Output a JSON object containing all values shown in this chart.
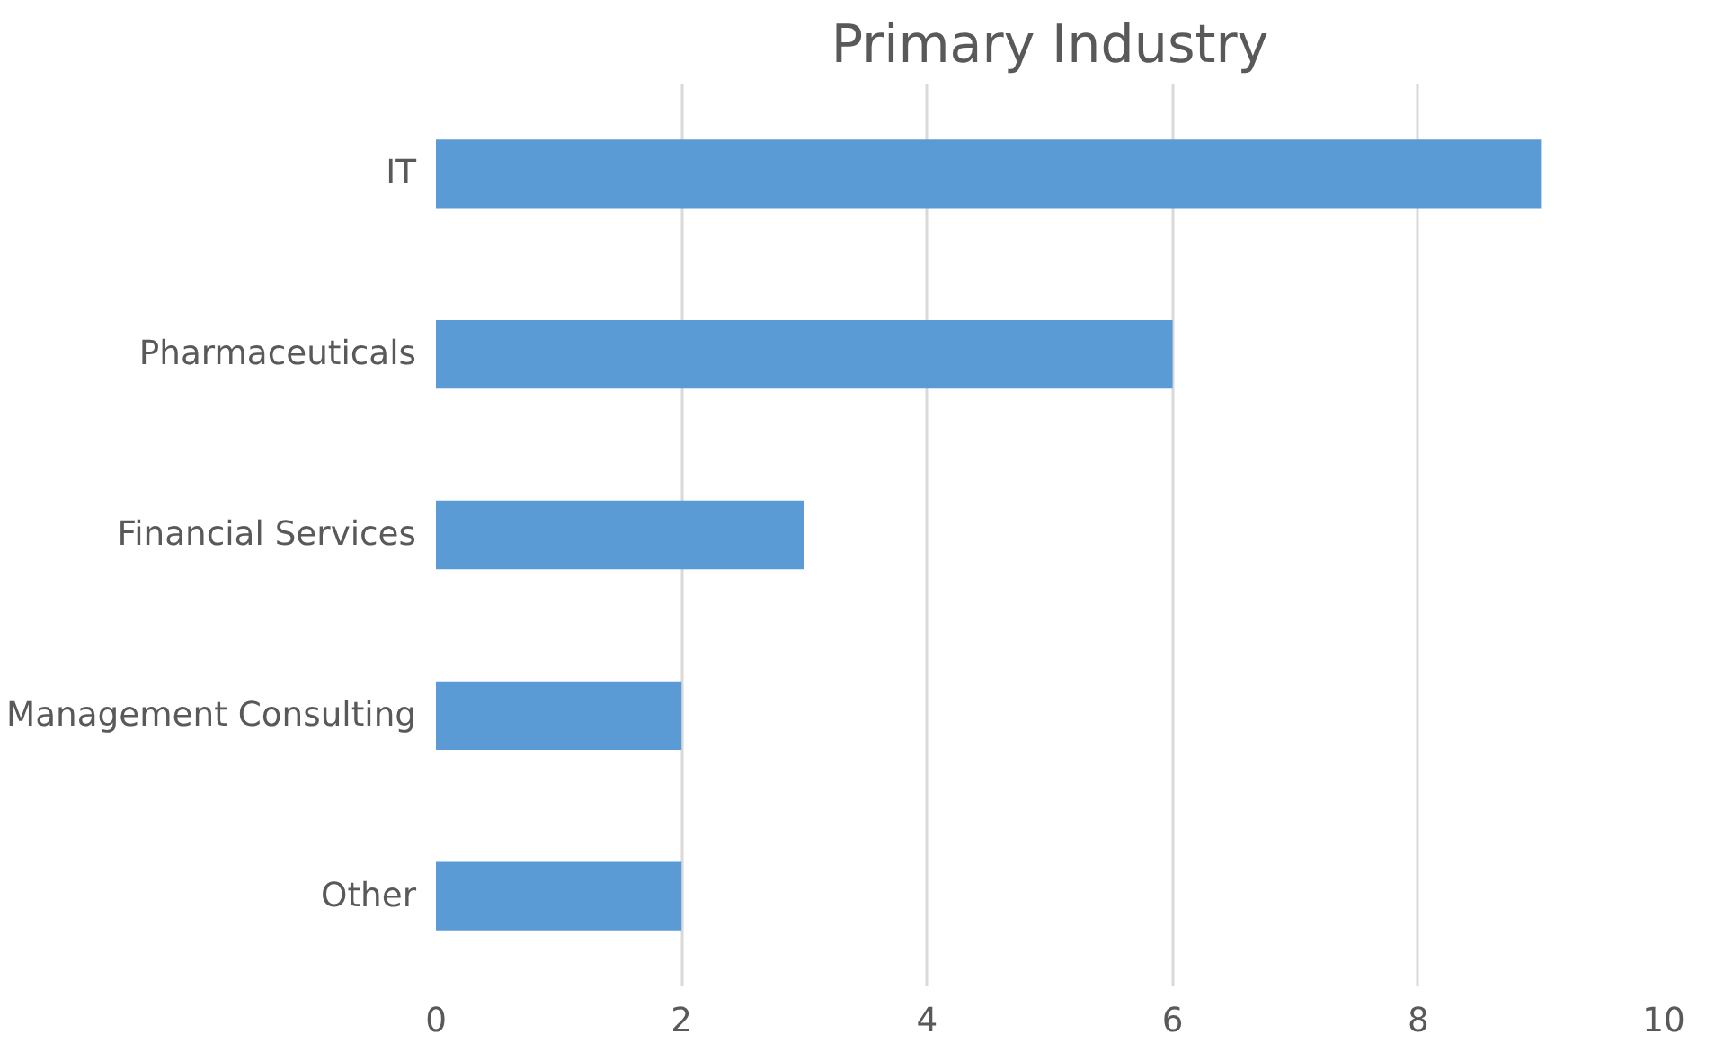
{
  "chart_data": {
    "type": "bar",
    "orientation": "horizontal",
    "title": "Primary Industry",
    "categories": [
      "IT",
      "Pharmaceuticals",
      "Financial Services",
      "Management Consulting",
      "Other"
    ],
    "values": [
      9,
      6,
      3,
      2,
      2
    ],
    "color": "#5b9bd5",
    "xlim": [
      0,
      10
    ],
    "xticks": [
      0,
      2,
      4,
      6,
      8,
      10
    ],
    "grid": "x"
  }
}
